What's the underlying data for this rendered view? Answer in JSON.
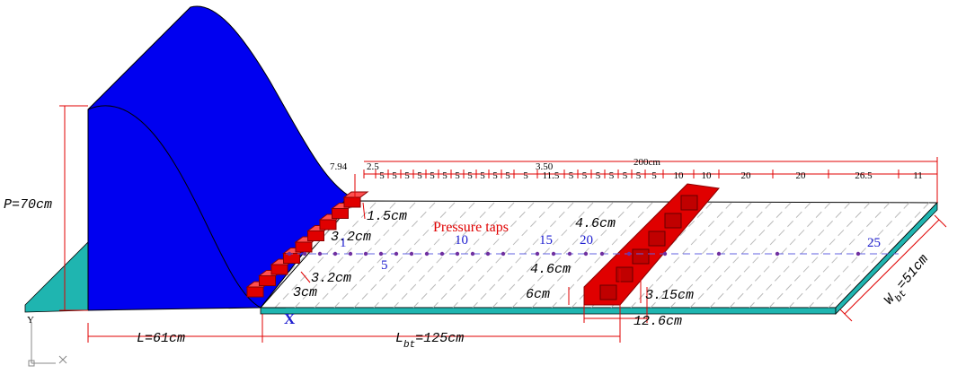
{
  "labels": {
    "p": "P=70cm",
    "l": "L=61cm",
    "lbt": {
      "main": "L",
      "sub": "bt",
      "rest": "=125cm"
    },
    "wbt": {
      "main": "W",
      "sub": "bt",
      "rest": "=51cm"
    },
    "d15": "1.5cm",
    "d32a": "3.2cm",
    "d32b": "3.2cm",
    "d3": "3cm",
    "taps": "Pressure taps",
    "t1": "1",
    "t5": "5",
    "t10": "10",
    "t15": "15",
    "t20": "20",
    "t25": "25",
    "d46a": "4.6cm",
    "d46b": "4.6cm",
    "d6": "6cm",
    "d315": "3.15cm",
    "d126": "12.6cm",
    "total": "200cm",
    "a794": "7.94",
    "a25": "2.5",
    "a350": "3.50",
    "x": "X",
    "y": "Y"
  },
  "segments": [
    "5",
    "5",
    "5",
    "5",
    "5",
    "5",
    "5",
    "5",
    "5",
    "5",
    "5",
    "5",
    "11.5",
    "5",
    "5",
    "5",
    "5",
    "5",
    "5",
    "5",
    "10",
    "10",
    "20",
    "20",
    "26.5",
    "11"
  ]
}
